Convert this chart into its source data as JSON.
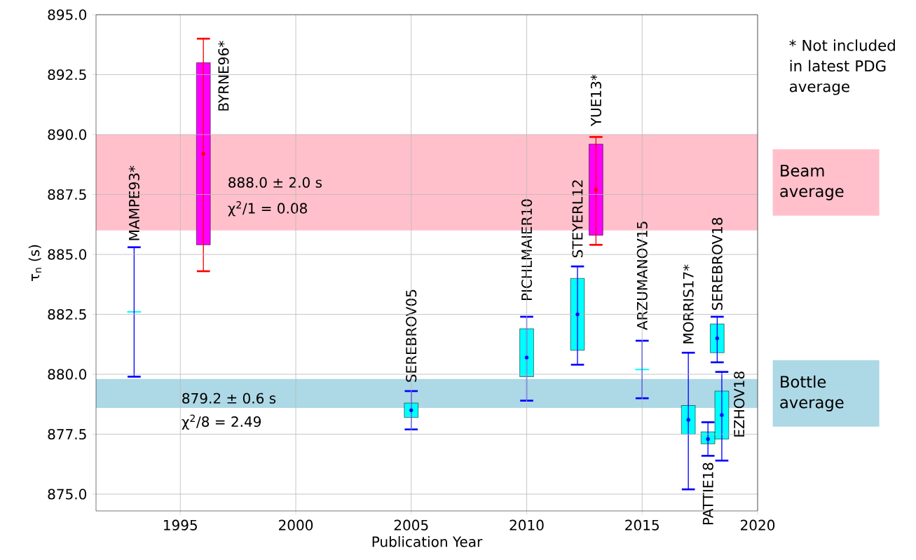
{
  "chart_data": {
    "type": "box",
    "xlabel": "Publication Year",
    "ylabel": "τ$_{n}$ (s)",
    "xlim": [
      1991.35,
      2020
    ],
    "ylim": [
      874.3,
      895.0
    ],
    "xticks": [
      1995,
      2000,
      2005,
      2010,
      2015,
      2020
    ],
    "yticks": [
      {
        "value": 875,
        "label": "875.0"
      },
      {
        "value": 877.5,
        "label": "877.5"
      },
      {
        "value": 880,
        "label": "880.0"
      },
      {
        "value": 882.5,
        "label": "882.5"
      },
      {
        "value": 885,
        "label": "885.0"
      },
      {
        "value": 887.5,
        "label": "887.5"
      },
      {
        "value": 890,
        "label": "890.0"
      },
      {
        "value": 892.5,
        "label": "892.5"
      },
      {
        "value": 895,
        "label": "895.0"
      }
    ],
    "grid": true,
    "series": [
      {
        "color": "#ff00ff",
        "x": [
          1996,
          2013
        ],
        "boxes": [
          {
            "low": 884.3,
            "q1": 885.4,
            "median": 889.2,
            "q3": 893.0,
            "high": 894.0
          },
          {
            "low": 885.4,
            "q1": 885.8,
            "median": 887.7,
            "q3": 889.6,
            "high": 889.9
          }
        ]
      },
      {
        "color": "#00ffff",
        "x": [
          1993,
          2005,
          2010,
          2012.2,
          2015,
          2017,
          2017.85,
          2018.25,
          2018.45
        ],
        "boxes": [
          {
            "low": 879.9,
            "q1": 882.6,
            "median": 882.6,
            "q3": 882.6,
            "high": 885.3
          },
          {
            "low": 877.7,
            "q1": 878.2,
            "median": 878.5,
            "q3": 878.8,
            "high": 879.3
          },
          {
            "low": 878.9,
            "q1": 879.9,
            "median": 880.7,
            "q3": 881.9,
            "high": 882.4
          },
          {
            "low": 880.4,
            "q1": 881.0,
            "median": 882.5,
            "q3": 884.0,
            "high": 884.5
          },
          {
            "low": 879.0,
            "q1": 880.2,
            "median": 880.2,
            "q3": 880.2,
            "high": 881.4
          },
          {
            "low": 875.2,
            "q1": 877.5,
            "median": 878.1,
            "q3": 878.7,
            "high": 880.9
          },
          {
            "low": 876.6,
            "q1": 877.1,
            "median": 877.3,
            "q3": 877.6,
            "high": 878.0
          },
          {
            "low": 880.5,
            "q1": 880.9,
            "median": 881.5,
            "q3": 882.1,
            "high": 882.4
          },
          {
            "low": 876.4,
            "q1": 877.3,
            "median": 878.3,
            "q3": 879.3,
            "high": 880.1
          }
        ]
      }
    ],
    "bands": [
      {
        "axis": "y",
        "from": 886.0,
        "to": 890.0,
        "label": "Beam average",
        "color": "#ffc0cb"
      },
      {
        "axis": "y",
        "from": 878.6,
        "to": 879.8,
        "label": "Bottle average",
        "color": "#add8e6"
      }
    ],
    "annotations": [
      "MAMPE93*",
      "BYRNE96*",
      "SEREBROV05",
      "PICHLMAIER10",
      "STEYERL12",
      "YUE13*",
      "ARZUMANOV15",
      "MORRIS17*",
      "PATTIE18",
      "SEREBROV18",
      "EZHOV18",
      "888.0 ± 2.0 s",
      "χ$^{2}$/1 = 0.08",
      "879.2 ± 0.6 s",
      "χ$^{2}$/8 = 2.49",
      "* Not included in latest PDG average"
    ]
  }
}
